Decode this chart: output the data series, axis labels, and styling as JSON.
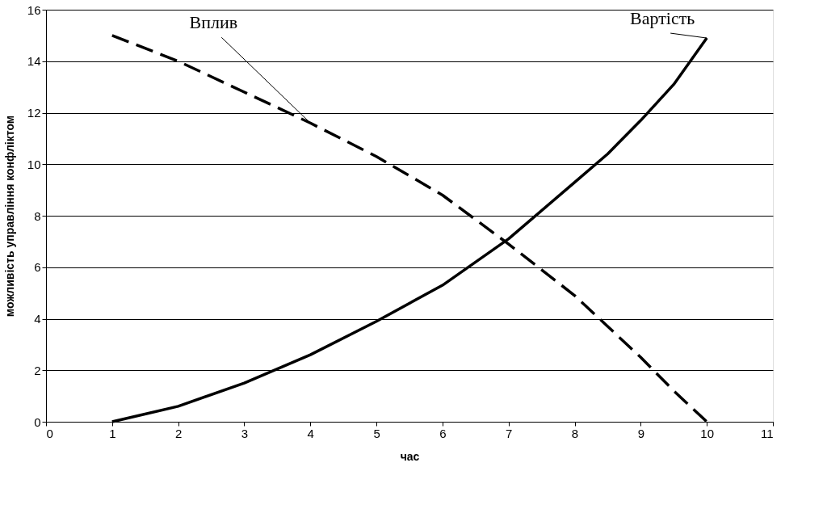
{
  "chart_data": {
    "type": "line",
    "xlabel": "час",
    "ylabel": "можливість управління конфліктом",
    "xlim": [
      0,
      11
    ],
    "xticks": [
      0,
      1,
      2,
      3,
      4,
      5,
      6,
      7,
      8,
      9,
      10,
      11
    ],
    "ylim": [
      0,
      16
    ],
    "yticks": [
      0,
      2,
      4,
      6,
      8,
      10,
      12,
      14,
      16
    ],
    "grid": "y",
    "marker": "none",
    "series": [
      {
        "name": "Вплив",
        "color": "#000000",
        "line_style": "dashed",
        "x": [
          1,
          2,
          3,
          4,
          5,
          6,
          7,
          8,
          8.5,
          9,
          9.5,
          10
        ],
        "values": [
          15,
          14,
          12.8,
          11.6,
          10.3,
          8.8,
          6.9,
          4.9,
          3.7,
          2.5,
          1.2,
          0
        ]
      },
      {
        "name": "Вартість",
        "color": "#000000",
        "line_style": "solid",
        "x": [
          1,
          2,
          3,
          4,
          5,
          6,
          7,
          8,
          8.5,
          9,
          9.5,
          10
        ],
        "values": [
          0,
          0.6,
          1.5,
          2.6,
          3.9,
          5.3,
          7.1,
          9.3,
          10.4,
          11.7,
          13.1,
          14.9
        ]
      }
    ]
  }
}
